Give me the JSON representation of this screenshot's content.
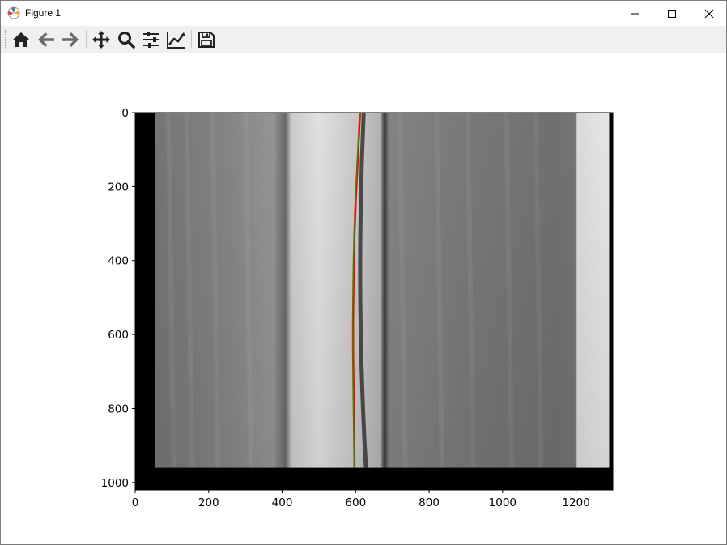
{
  "window": {
    "title": "Figure 1",
    "controls": [
      "minimize",
      "maximize",
      "close"
    ]
  },
  "toolbar": {
    "buttons": [
      {
        "name": "home",
        "icon": "home-icon"
      },
      {
        "name": "back",
        "icon": "arrow-left-icon"
      },
      {
        "name": "forward",
        "icon": "arrow-right-icon"
      },
      {
        "name": "pan",
        "icon": "move-icon"
      },
      {
        "name": "zoom",
        "icon": "magnifier-icon"
      },
      {
        "name": "configure-subplots",
        "icon": "sliders-icon"
      },
      {
        "name": "edit-axes",
        "icon": "line-chart-icon"
      },
      {
        "name": "save",
        "icon": "floppy-disk-icon"
      }
    ]
  },
  "chart_data": {
    "type": "image",
    "xlim": [
      0,
      1300
    ],
    "ylim": [
      1020,
      0
    ],
    "xticks": [
      "0",
      "200",
      "400",
      "600",
      "800",
      "1000",
      "1200"
    ],
    "yticks": [
      "0",
      "200",
      "400",
      "600",
      "800",
      "1000"
    ],
    "xlabel": "",
    "ylabel": "",
    "title": "",
    "grid": false,
    "image_extent": {
      "x": [
        0,
        1300
      ],
      "y": [
        960,
        0
      ]
    },
    "overlay_lines": [
      {
        "color": "#ff0000",
        "x": [
          612,
          608,
          604,
          600,
          597,
          595,
          594,
          593,
          593,
          594,
          595,
          597
        ],
        "y": [
          0,
          80,
          160,
          240,
          320,
          400,
          480,
          560,
          640,
          720,
          800,
          960
        ]
      },
      {
        "color": "#00aa00",
        "x": [
          611,
          607,
          603,
          599,
          596,
          594,
          593,
          592,
          592,
          593,
          594,
          596
        ],
        "y": [
          0,
          80,
          160,
          240,
          320,
          400,
          480,
          560,
          640,
          720,
          800,
          960
        ]
      }
    ]
  }
}
